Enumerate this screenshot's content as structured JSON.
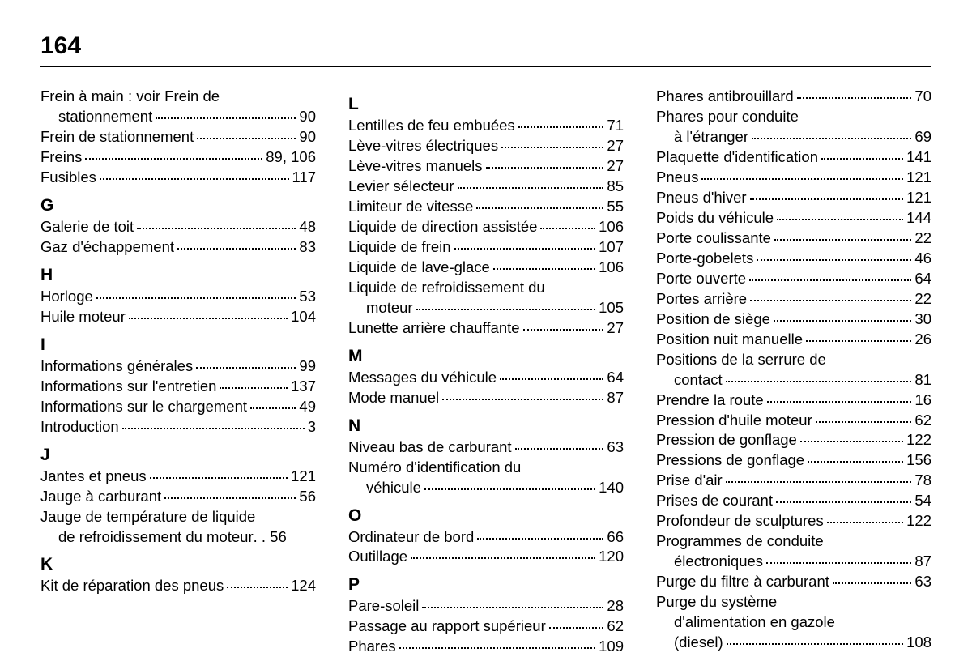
{
  "page_number": "164",
  "columns": [
    {
      "sections": [
        {
          "entries": [
            {
              "label_lines": [
                "Frein à main : voir Frein de",
                "stationnement"
              ],
              "page": "90"
            },
            {
              "label_lines": [
                "Frein de stationnement"
              ],
              "page": "90"
            },
            {
              "label_lines": [
                "Freins"
              ],
              "page": "89, 106"
            },
            {
              "label_lines": [
                "Fusibles"
              ],
              "page": "117"
            }
          ]
        },
        {
          "letter": "G",
          "entries": [
            {
              "label_lines": [
                "Galerie de toit"
              ],
              "page": "48"
            },
            {
              "label_lines": [
                "Gaz d'échappement"
              ],
              "page": "83"
            }
          ]
        },
        {
          "letter": "H",
          "entries": [
            {
              "label_lines": [
                "Horloge"
              ],
              "page": "53"
            },
            {
              "label_lines": [
                "Huile moteur"
              ],
              "page": "104"
            }
          ]
        },
        {
          "letter": "I",
          "entries": [
            {
              "label_lines": [
                "Informations générales"
              ],
              "page": "99"
            },
            {
              "label_lines": [
                "Informations sur l'entretien"
              ],
              "page": "137"
            },
            {
              "label_lines": [
                "Informations sur le chargement"
              ],
              "page": "49"
            },
            {
              "label_lines": [
                "Introduction"
              ],
              "page": "3"
            }
          ]
        },
        {
          "letter": "J",
          "entries": [
            {
              "label_lines": [
                "Jantes et pneus"
              ],
              "page": "121"
            },
            {
              "label_lines": [
                "Jauge à carburant"
              ],
              "page": "56"
            },
            {
              "label_lines": [
                "Jauge de température de liquide",
                "de refroidissement du moteur"
              ],
              "page": "56",
              "tight": true
            }
          ]
        },
        {
          "letter": "K",
          "entries": [
            {
              "label_lines": [
                "Kit de réparation des pneus"
              ],
              "page": "124"
            }
          ]
        }
      ]
    },
    {
      "sections": [
        {
          "letter": "L",
          "entries": [
            {
              "label_lines": [
                "Lentilles de feu embuées"
              ],
              "page": "71"
            },
            {
              "label_lines": [
                "Lève-vitres électriques"
              ],
              "page": "27"
            },
            {
              "label_lines": [
                "Lève-vitres manuels"
              ],
              "page": "27"
            },
            {
              "label_lines": [
                "Levier sélecteur"
              ],
              "page": "85"
            },
            {
              "label_lines": [
                "Limiteur de vitesse"
              ],
              "page": "55"
            },
            {
              "label_lines": [
                "Liquide de direction assistée"
              ],
              "page": "106"
            },
            {
              "label_lines": [
                "Liquide de frein"
              ],
              "page": "107"
            },
            {
              "label_lines": [
                "Liquide de lave-glace"
              ],
              "page": "106"
            },
            {
              "label_lines": [
                "Liquide de refroidissement du",
                "moteur"
              ],
              "page": "105"
            },
            {
              "label_lines": [
                "Lunette arrière chauffante"
              ],
              "page": "27"
            }
          ]
        },
        {
          "letter": "M",
          "entries": [
            {
              "label_lines": [
                "Messages du véhicule"
              ],
              "page": "64"
            },
            {
              "label_lines": [
                "Mode manuel"
              ],
              "page": "87"
            }
          ]
        },
        {
          "letter": "N",
          "entries": [
            {
              "label_lines": [
                "Niveau bas de carburant"
              ],
              "page": "63"
            },
            {
              "label_lines": [
                "Numéro d'identification du",
                "véhicule"
              ],
              "page": "140"
            }
          ]
        },
        {
          "letter": "O",
          "entries": [
            {
              "label_lines": [
                "Ordinateur de bord"
              ],
              "page": "66"
            },
            {
              "label_lines": [
                "Outillage"
              ],
              "page": "120"
            }
          ]
        },
        {
          "letter": "P",
          "entries": [
            {
              "label_lines": [
                "Pare-soleil"
              ],
              "page": "28"
            },
            {
              "label_lines": [
                "Passage au rapport supérieur"
              ],
              "page": "62"
            },
            {
              "label_lines": [
                "Phares"
              ],
              "page": "109"
            }
          ]
        }
      ]
    },
    {
      "sections": [
        {
          "entries": [
            {
              "label_lines": [
                "Phares antibrouillard"
              ],
              "page": "70"
            },
            {
              "label_lines": [
                "Phares pour conduite",
                "à l'étranger"
              ],
              "page": "69"
            },
            {
              "label_lines": [
                "Plaquette d'identification"
              ],
              "page": "141"
            },
            {
              "label_lines": [
                "Pneus"
              ],
              "page": "121"
            },
            {
              "label_lines": [
                "Pneus d'hiver"
              ],
              "page": "121"
            },
            {
              "label_lines": [
                "Poids du véhicule"
              ],
              "page": "144"
            },
            {
              "label_lines": [
                "Porte coulissante"
              ],
              "page": "22"
            },
            {
              "label_lines": [
                "Porte-gobelets"
              ],
              "page": "46"
            },
            {
              "label_lines": [
                "Porte ouverte"
              ],
              "page": "64"
            },
            {
              "label_lines": [
                "Portes arrière"
              ],
              "page": "22"
            },
            {
              "label_lines": [
                "Position de siège"
              ],
              "page": "30"
            },
            {
              "label_lines": [
                "Position nuit manuelle"
              ],
              "page": "26"
            },
            {
              "label_lines": [
                "Positions de la serrure de",
                "contact"
              ],
              "page": "81"
            },
            {
              "label_lines": [
                "Prendre la route"
              ],
              "page": "16"
            },
            {
              "label_lines": [
                "Pression d'huile moteur"
              ],
              "page": "62"
            },
            {
              "label_lines": [
                "Pression de gonflage"
              ],
              "page": "122"
            },
            {
              "label_lines": [
                "Pressions de gonflage"
              ],
              "page": "156"
            },
            {
              "label_lines": [
                "Prise d'air"
              ],
              "page": "78"
            },
            {
              "label_lines": [
                "Prises de courant"
              ],
              "page": "54"
            },
            {
              "label_lines": [
                "Profondeur de sculptures"
              ],
              "page": "122"
            },
            {
              "label_lines": [
                "Programmes de conduite",
                "électroniques"
              ],
              "page": "87"
            },
            {
              "label_lines": [
                "Purge du filtre à carburant"
              ],
              "page": "63"
            },
            {
              "label_lines": [
                "Purge du système",
                "d'alimentation en gazole",
                "(diesel)"
              ],
              "page": "108"
            }
          ]
        }
      ]
    }
  ]
}
